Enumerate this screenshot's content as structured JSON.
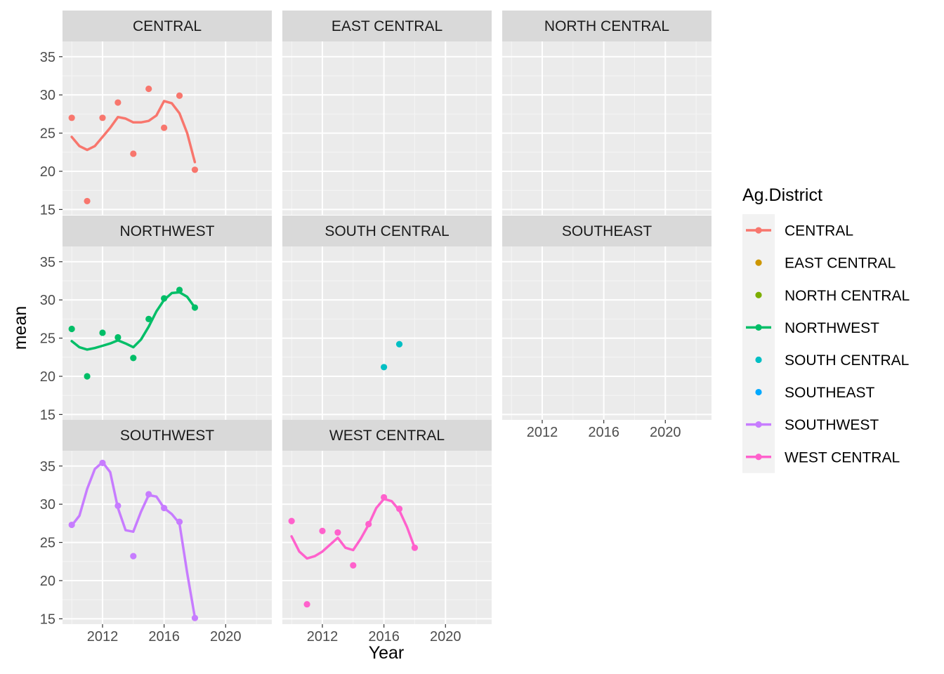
{
  "chart_data": {
    "type": "scatter",
    "facet_wrap": true,
    "xlabel": "Year",
    "ylabel": "mean",
    "xlim": [
      2009.4,
      2023
    ],
    "ylim": [
      14.3,
      37
    ],
    "x_ticks": [
      2012,
      2016,
      2020
    ],
    "x_tick_labels": [
      "2012",
      "2016",
      "2020"
    ],
    "y_ticks": [
      15,
      20,
      25,
      30,
      35
    ],
    "y_tick_labels": [
      "15",
      "20",
      "25",
      "30",
      "35"
    ],
    "grid": true,
    "smoothing": "loess",
    "legend": {
      "title": "Ag.District",
      "placement": "right",
      "entries": [
        {
          "name": "CENTRAL",
          "color": "#F8766D",
          "line": true
        },
        {
          "name": "EAST CENTRAL",
          "color": "#CD9600",
          "line": false
        },
        {
          "name": "NORTH CENTRAL",
          "color": "#7CAE00",
          "line": false
        },
        {
          "name": "NORTHWEST",
          "color": "#00BE67",
          "line": true
        },
        {
          "name": "SOUTH CENTRAL",
          "color": "#00BFC4",
          "line": false
        },
        {
          "name": "SOUTHEAST",
          "color": "#00A9FF",
          "line": false
        },
        {
          "name": "SOUTHWEST",
          "color": "#C77CFF",
          "line": true
        },
        {
          "name": "WEST CENTRAL",
          "color": "#FF61CC",
          "line": true
        }
      ]
    },
    "panels": [
      {
        "name": "CENTRAL",
        "color": "#F8766D",
        "points": [
          [
            2010,
            27.0
          ],
          [
            2011,
            16.1
          ],
          [
            2012,
            27.0
          ],
          [
            2013,
            29.0
          ],
          [
            2014,
            22.3
          ],
          [
            2015,
            30.8
          ],
          [
            2016,
            25.7
          ],
          [
            2017,
            29.9
          ],
          [
            2018,
            20.2
          ]
        ],
        "smooth": [
          [
            2010,
            24.5
          ],
          [
            2010.5,
            23.3
          ],
          [
            2011,
            22.8
          ],
          [
            2011.5,
            23.3
          ],
          [
            2012,
            24.5
          ],
          [
            2012.5,
            25.7
          ],
          [
            2013,
            27.1
          ],
          [
            2013.5,
            26.9
          ],
          [
            2014,
            26.4
          ],
          [
            2014.5,
            26.4
          ],
          [
            2015,
            26.6
          ],
          [
            2015.5,
            27.3
          ],
          [
            2016,
            29.2
          ],
          [
            2016.5,
            28.9
          ],
          [
            2017,
            27.6
          ],
          [
            2017.5,
            25.0
          ],
          [
            2018,
            21.2
          ]
        ]
      },
      {
        "name": "EAST CENTRAL",
        "color": "#CD9600",
        "points": [],
        "smooth": []
      },
      {
        "name": "NORTH CENTRAL",
        "color": "#7CAE00",
        "points": [],
        "smooth": []
      },
      {
        "name": "NORTHWEST",
        "color": "#00BE67",
        "points": [
          [
            2010,
            26.2
          ],
          [
            2011,
            20.0
          ],
          [
            2012,
            25.7
          ],
          [
            2013,
            25.1
          ],
          [
            2014,
            22.4
          ],
          [
            2015,
            27.5
          ],
          [
            2016,
            30.2
          ],
          [
            2017,
            31.3
          ],
          [
            2018,
            29.0
          ]
        ],
        "smooth": [
          [
            2010,
            24.6
          ],
          [
            2010.5,
            23.8
          ],
          [
            2011,
            23.5
          ],
          [
            2011.5,
            23.7
          ],
          [
            2012,
            24.0
          ],
          [
            2012.5,
            24.3
          ],
          [
            2013,
            24.7
          ],
          [
            2013.5,
            24.3
          ],
          [
            2014,
            23.8
          ],
          [
            2014.5,
            24.8
          ],
          [
            2015,
            26.5
          ],
          [
            2015.5,
            28.5
          ],
          [
            2016,
            30.0
          ],
          [
            2016.5,
            30.9
          ],
          [
            2017,
            31.0
          ],
          [
            2017.5,
            30.4
          ],
          [
            2018,
            29.0
          ]
        ]
      },
      {
        "name": "SOUTH CENTRAL",
        "color": "#00BFC4",
        "points": [
          [
            2016,
            21.2
          ],
          [
            2017,
            24.2
          ]
        ],
        "smooth": []
      },
      {
        "name": "SOUTHEAST",
        "color": "#00A9FF",
        "points": [],
        "smooth": []
      },
      {
        "name": "SOUTHWEST",
        "color": "#C77CFF",
        "points": [
          [
            2010,
            27.3
          ],
          [
            2012,
            35.4
          ],
          [
            2013,
            29.8
          ],
          [
            2014,
            23.2
          ],
          [
            2015,
            31.3
          ],
          [
            2016,
            29.5
          ],
          [
            2017,
            27.7
          ],
          [
            2018,
            15.1
          ]
        ],
        "smooth": [
          [
            2010,
            27.2
          ],
          [
            2010.5,
            28.5
          ],
          [
            2011,
            32.0
          ],
          [
            2011.5,
            34.6
          ],
          [
            2012,
            35.5
          ],
          [
            2012.5,
            34.2
          ],
          [
            2013,
            29.5
          ],
          [
            2013.5,
            26.6
          ],
          [
            2014,
            26.4
          ],
          [
            2014.5,
            29.0
          ],
          [
            2015,
            31.2
          ],
          [
            2015.5,
            31.0
          ],
          [
            2016,
            29.5
          ],
          [
            2016.5,
            28.7
          ],
          [
            2017,
            27.5
          ],
          [
            2017.5,
            21.0
          ],
          [
            2018,
            15.2
          ]
        ]
      },
      {
        "name": "WEST CENTRAL",
        "color": "#FF61CC",
        "points": [
          [
            2010,
            27.8
          ],
          [
            2011,
            16.9
          ],
          [
            2012,
            26.5
          ],
          [
            2013,
            26.3
          ],
          [
            2014,
            22.0
          ],
          [
            2015,
            27.4
          ],
          [
            2016,
            30.9
          ],
          [
            2017,
            29.4
          ],
          [
            2018,
            24.3
          ]
        ],
        "smooth": [
          [
            2010,
            25.8
          ],
          [
            2010.5,
            23.8
          ],
          [
            2011,
            22.9
          ],
          [
            2011.5,
            23.2
          ],
          [
            2012,
            23.8
          ],
          [
            2012.5,
            24.7
          ],
          [
            2013,
            25.6
          ],
          [
            2013.5,
            24.3
          ],
          [
            2014,
            24.0
          ],
          [
            2014.5,
            25.5
          ],
          [
            2015,
            27.3
          ],
          [
            2015.5,
            29.5
          ],
          [
            2016,
            30.7
          ],
          [
            2016.5,
            30.4
          ],
          [
            2017,
            29.2
          ],
          [
            2017.5,
            27.0
          ],
          [
            2018,
            24.3
          ]
        ]
      }
    ]
  }
}
